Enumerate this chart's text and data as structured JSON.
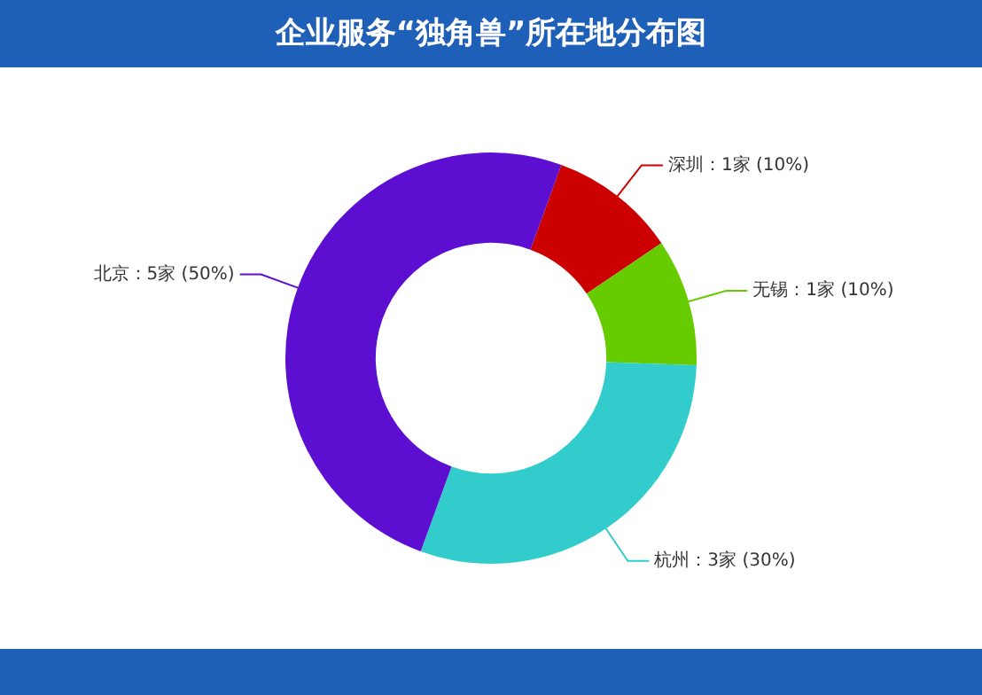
{
  "chart_data": {
    "type": "donut",
    "title": "企业服务“独角兽”所在地分布图",
    "categories": [
      "深圳",
      "无锡",
      "杭州",
      "北京"
    ],
    "values": [
      1,
      1,
      3,
      5
    ],
    "colors": [
      "#cc0000",
      "#66cc00",
      "#33cccc",
      "#5c0fd0"
    ],
    "value_labels": [
      "：1家 (10%)",
      "：1家 (10%)",
      "：3家 (30%)",
      "：5家 (50%)"
    ],
    "legend": false
  }
}
